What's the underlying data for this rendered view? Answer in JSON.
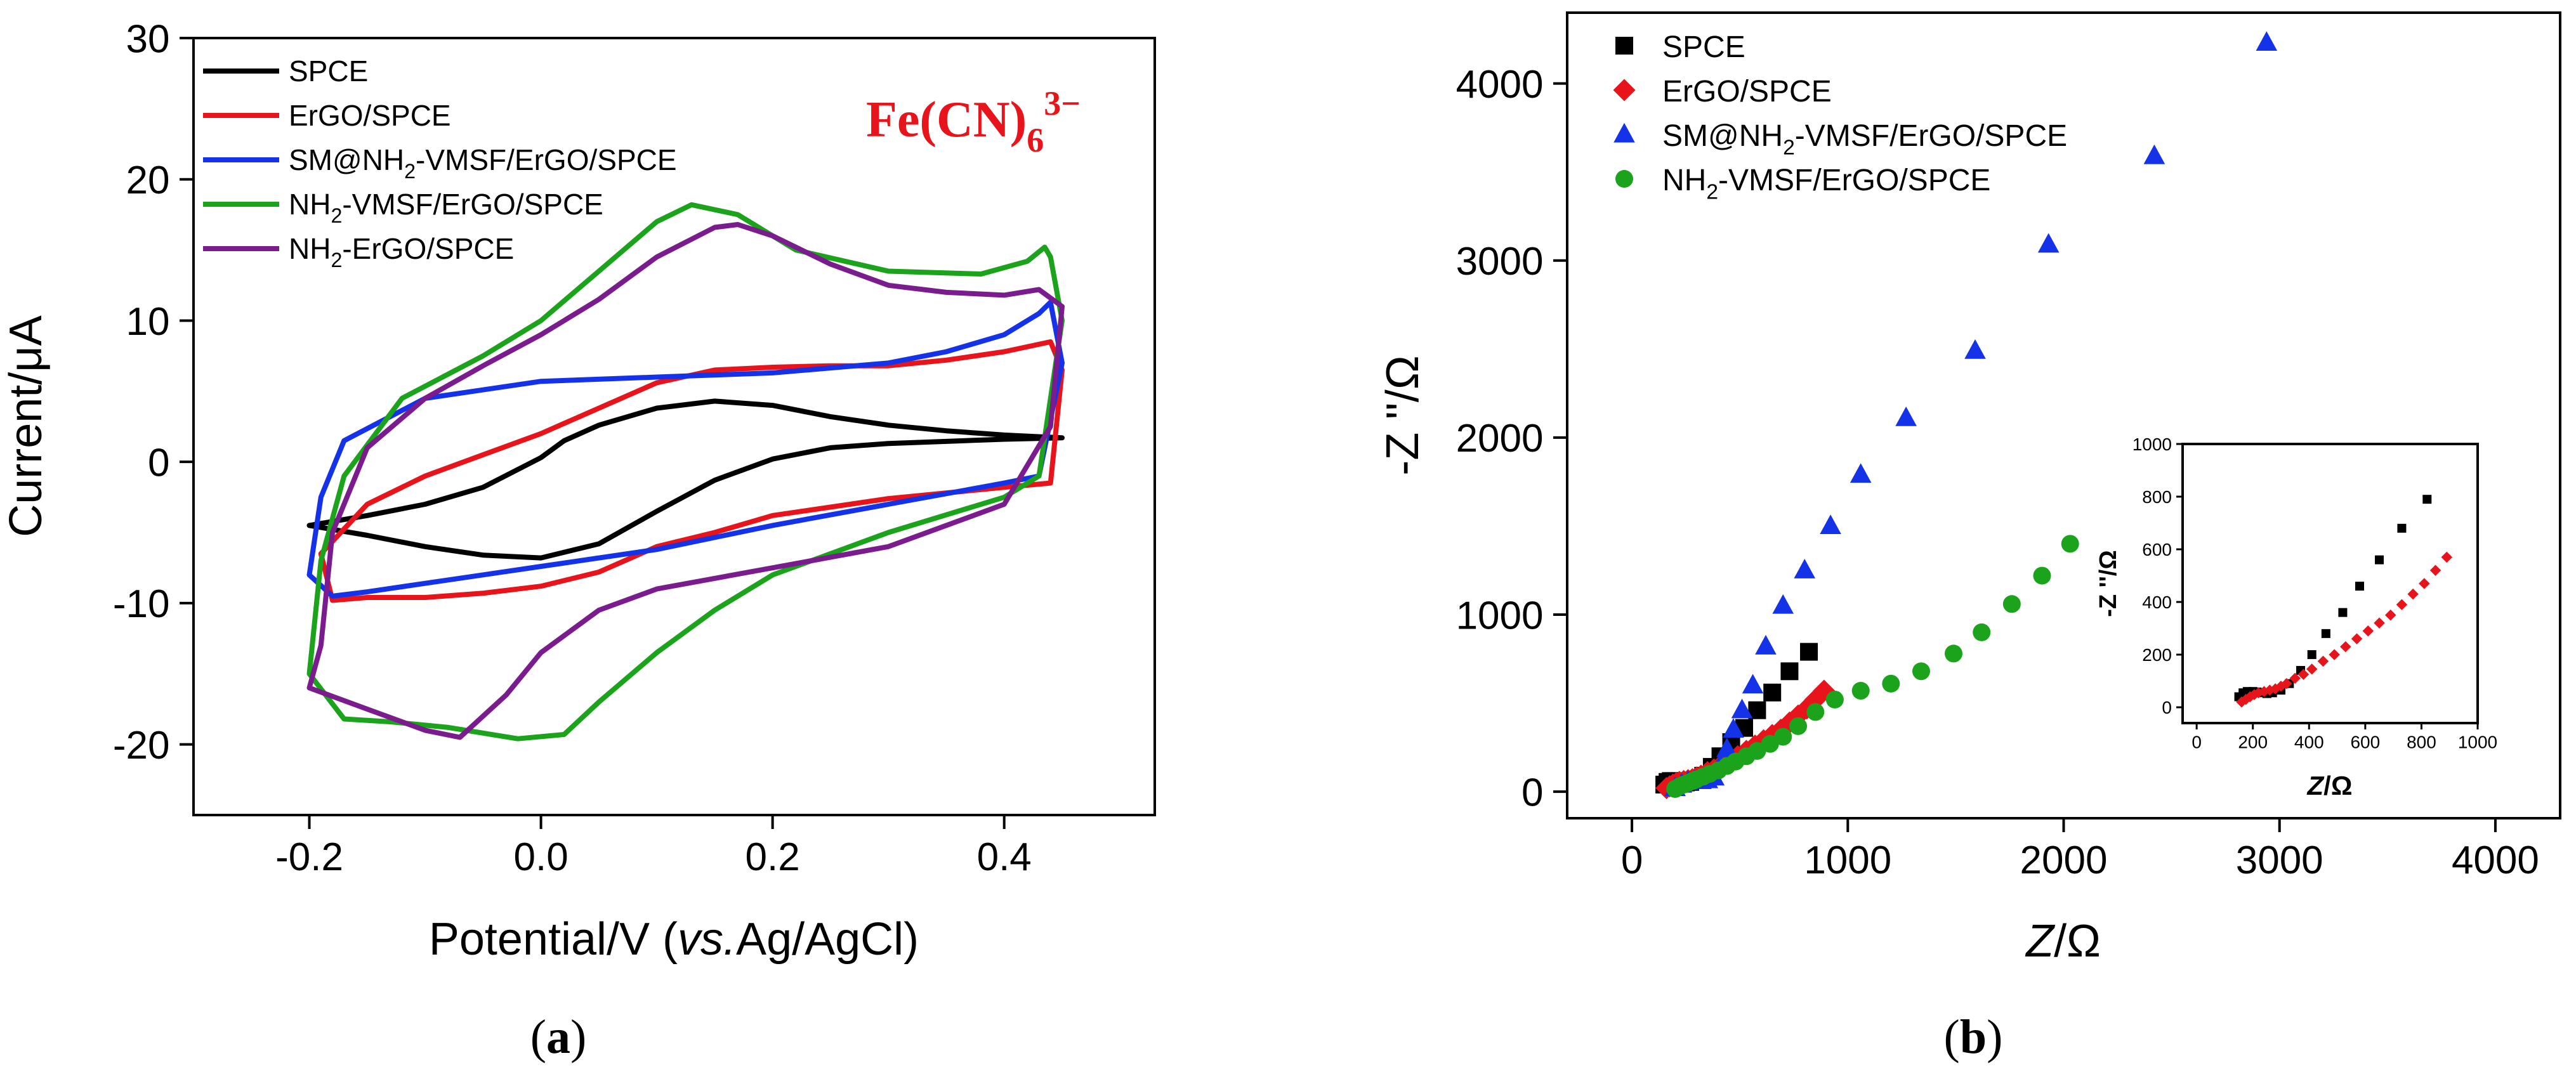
{
  "chart_data": [
    {
      "panel": "(a)",
      "panel_label": {
        "open": "(",
        "letter": "a",
        "close": ")"
      },
      "type": "line",
      "title": "",
      "annotation": {
        "main": "Fe(CN)",
        "sub": "6",
        "sup": "3−",
        "color": "#e8141b"
      },
      "xlabel": {
        "pre": "Potential/V (",
        "italic": "vs.",
        "post": "Ag/AgCl)"
      },
      "ylabel": "Current/μA",
      "xlim": [
        -0.3,
        0.53
      ],
      "ylim": [
        -25,
        30
      ],
      "xticks": [
        -0.2,
        0.0,
        0.2,
        0.4
      ],
      "xtick_labels": [
        "-0.2",
        "0.0",
        "0.2",
        "0.4"
      ],
      "yticks": [
        -20,
        -10,
        0,
        10,
        20,
        30
      ],
      "ytick_labels": [
        "-20",
        "-10",
        "0",
        "10",
        "20",
        "30"
      ],
      "legend_position": "top-left",
      "series": [
        {
          "name": "SPCE",
          "legend": {
            "pre": "SPCE",
            "sub": "",
            "post": ""
          },
          "color": "#000000",
          "x": [
            -0.2,
            -0.15,
            -0.1,
            -0.05,
            0.0,
            0.02,
            0.05,
            0.1,
            0.15,
            0.2,
            0.25,
            0.3,
            0.35,
            0.4,
            0.45,
            0.4,
            0.3,
            0.25,
            0.2,
            0.15,
            0.1,
            0.05,
            0.0,
            -0.05,
            -0.1,
            -0.15,
            -0.2
          ],
          "y": [
            -4.5,
            -3.8,
            -3.0,
            -1.8,
            0.3,
            1.5,
            2.6,
            3.8,
            4.3,
            4.0,
            3.2,
            2.6,
            2.2,
            1.9,
            1.7,
            1.6,
            1.3,
            1.0,
            0.2,
            -1.3,
            -3.5,
            -5.8,
            -6.8,
            -6.6,
            -6.0,
            -5.2,
            -4.5
          ]
        },
        {
          "name": "ErGO/SPCE",
          "legend": {
            "pre": "ErGO/SPCE",
            "sub": "",
            "post": ""
          },
          "color": "#e8141b",
          "x": [
            -0.19,
            -0.15,
            -0.1,
            -0.05,
            0.0,
            0.05,
            0.1,
            0.15,
            0.2,
            0.25,
            0.3,
            0.35,
            0.4,
            0.44,
            0.45,
            0.44,
            0.4,
            0.3,
            0.2,
            0.15,
            0.1,
            0.05,
            0.0,
            -0.05,
            -0.1,
            -0.15,
            -0.18,
            -0.19
          ],
          "y": [
            -6.5,
            -3.0,
            -1.0,
            0.5,
            2.0,
            3.8,
            5.6,
            6.5,
            6.7,
            6.8,
            6.8,
            7.2,
            7.8,
            8.5,
            6.5,
            -1.5,
            -1.8,
            -2.6,
            -3.8,
            -5.0,
            -6.0,
            -7.8,
            -8.8,
            -9.3,
            -9.6,
            -9.6,
            -9.8,
            -6.5
          ]
        },
        {
          "name": "SM@NH2-VMSF/ErGO/SPCE",
          "legend": {
            "pre": "SM@NH",
            "sub": "2",
            "post": "-VMSF/ErGO/SPCE"
          },
          "color": "#1432e8",
          "x": [
            -0.19,
            -0.17,
            -0.1,
            0.0,
            0.1,
            0.2,
            0.3,
            0.35,
            0.4,
            0.43,
            0.44,
            0.45,
            0.43,
            0.4,
            0.3,
            0.2,
            0.1,
            0.0,
            -0.1,
            -0.15,
            -0.18,
            -0.2,
            -0.19
          ],
          "y": [
            -2.5,
            1.5,
            4.5,
            5.7,
            6.0,
            6.3,
            7.0,
            7.8,
            9.0,
            10.5,
            11.3,
            7.0,
            -1.0,
            -1.5,
            -3.0,
            -4.5,
            -6.2,
            -7.4,
            -8.6,
            -9.2,
            -9.5,
            -8.0,
            -2.5
          ]
        },
        {
          "name": "NH2-VMSF/ErGO/SPCE",
          "legend": {
            "pre": "NH",
            "sub": "2",
            "post": "-VMSF/ErGO/SPCE"
          },
          "color": "#1ba31b",
          "x": [
            -0.19,
            -0.17,
            -0.12,
            -0.05,
            0.0,
            0.05,
            0.1,
            0.13,
            0.17,
            0.22,
            0.3,
            0.38,
            0.42,
            0.435,
            0.44,
            0.45,
            0.43,
            0.4,
            0.3,
            0.2,
            0.15,
            0.1,
            0.05,
            0.02,
            -0.02,
            -0.08,
            -0.13,
            -0.17,
            -0.2,
            -0.19
          ],
          "y": [
            -7.0,
            -1.0,
            4.5,
            7.5,
            10.0,
            13.5,
            17.0,
            18.2,
            17.5,
            15.0,
            13.5,
            13.3,
            14.2,
            15.2,
            14.5,
            10.0,
            -1.0,
            -2.5,
            -5.0,
            -8.0,
            -10.5,
            -13.5,
            -17.0,
            -19.3,
            -19.6,
            -18.8,
            -18.4,
            -18.2,
            -15.0,
            -7.0
          ]
        },
        {
          "name": "NH2-ErGO/SPCE",
          "legend": {
            "pre": "NH",
            "sub": "2",
            "post": "-ErGO/SPCE"
          },
          "color": "#7b1c8e",
          "x": [
            -0.19,
            -0.18,
            -0.15,
            -0.1,
            -0.05,
            0.0,
            0.05,
            0.1,
            0.15,
            0.17,
            0.2,
            0.25,
            0.3,
            0.35,
            0.4,
            0.43,
            0.45,
            0.44,
            0.4,
            0.3,
            0.2,
            0.1,
            0.05,
            0.0,
            -0.03,
            -0.07,
            -0.1,
            -0.15,
            -0.2,
            -0.19
          ],
          "y": [
            -13.0,
            -5.0,
            1.0,
            4.5,
            6.8,
            9.0,
            11.5,
            14.5,
            16.6,
            16.8,
            16.0,
            14.0,
            12.5,
            12.0,
            11.8,
            12.2,
            11.0,
            2.5,
            -3.0,
            -6.0,
            -7.5,
            -9.0,
            -10.5,
            -13.5,
            -16.5,
            -19.5,
            -19.0,
            -17.5,
            -16.0,
            -13.0
          ]
        }
      ]
    },
    {
      "panel": "(b)",
      "panel_label": {
        "open": "(",
        "letter": "b",
        "close": ")"
      },
      "type": "scatter",
      "title": "",
      "xlabel": {
        "italic": "Z",
        "post": "/Ω"
      },
      "ylabel": "-Z ''/Ω",
      "xlim": [
        -300,
        4300
      ],
      "ylim": [
        -150,
        4400
      ],
      "xticks": [
        0,
        1000,
        2000,
        3000,
        4000
      ],
      "xtick_labels": [
        "0",
        "1000",
        "2000",
        "3000",
        "4000"
      ],
      "yticks": [
        0,
        1000,
        2000,
        3000,
        4000
      ],
      "ytick_labels": [
        "0",
        "1000",
        "2000",
        "3000",
        "4000"
      ],
      "legend_position": "top-left",
      "series": [
        {
          "name": "SPCE",
          "legend": {
            "pre": "SPCE",
            "sub": "",
            "post": ""
          },
          "marker": "square",
          "color": "#000000",
          "x": [
            150,
            165,
            180,
            200,
            215,
            230,
            250,
            270,
            300,
            330,
            370,
            410,
            460,
            520,
            580,
            650,
            730,
            820
          ],
          "y": [
            40,
            55,
            60,
            60,
            58,
            55,
            52,
            55,
            65,
            90,
            140,
            200,
            280,
            360,
            460,
            560,
            680,
            790
          ]
        },
        {
          "name": "ErGO/SPCE",
          "legend": {
            "pre": "ErGO/SPCE",
            "sub": "",
            "post": ""
          },
          "marker": "diamond",
          "color": "#e8141b",
          "x": [
            160,
            175,
            190,
            205,
            220,
            240,
            260,
            280,
            300,
            320,
            350,
            380,
            410,
            450,
            490,
            530,
            570,
            610,
            650,
            690,
            730,
            770,
            810,
            850,
            890
          ],
          "y": [
            20,
            30,
            40,
            48,
            55,
            60,
            65,
            70,
            80,
            90,
            110,
            125,
            145,
            175,
            200,
            230,
            260,
            290,
            320,
            350,
            390,
            430,
            470,
            520,
            570
          ]
        },
        {
          "name": "SM@NH2-VMSF/ErGO/SPCE",
          "legend": {
            "pre": "SM@NH",
            "sub": "2",
            "post": "-VMSF/ErGO/SPCE"
          },
          "marker": "triangle",
          "color": "#1432e8",
          "x": [
            200,
            230,
            260,
            290,
            320,
            350,
            380,
            410,
            440,
            470,
            510,
            560,
            620,
            700,
            800,
            920,
            1060,
            1270,
            1590,
            1930,
            2420,
            2940
          ],
          "y": [
            20,
            40,
            55,
            60,
            60,
            65,
            80,
            150,
            240,
            350,
            460,
            600,
            820,
            1050,
            1250,
            1500,
            1790,
            2110,
            2490,
            3090,
            3590,
            4230
          ]
        },
        {
          "name": "NH2-VMSF/ErGO/SPCE",
          "legend": {
            "pre": "NH",
            "sub": "2",
            "post": "-VMSF/ErGO/SPCE"
          },
          "marker": "circle",
          "color": "#1ba31b",
          "x": [
            200,
            220,
            240,
            260,
            280,
            300,
            330,
            360,
            400,
            440,
            480,
            530,
            580,
            640,
            700,
            770,
            850,
            940,
            1060,
            1200,
            1340,
            1490,
            1620,
            1760,
            1900,
            2030
          ],
          "y": [
            15,
            30,
            40,
            50,
            60,
            70,
            85,
            100,
            120,
            145,
            170,
            200,
            230,
            270,
            310,
            370,
            450,
            520,
            570,
            610,
            680,
            780,
            900,
            1060,
            1220,
            1400
          ]
        }
      ],
      "inset": {
        "type": "scatter",
        "xlabel": {
          "italic": "Z",
          "post": "/Ω"
        },
        "ylabel": "-Z ''/Ω",
        "xlim": [
          -50,
          1000
        ],
        "ylim": [
          -60,
          1000
        ],
        "xticks": [
          0,
          200,
          400,
          600,
          800,
          1000
        ],
        "xtick_labels": [
          "0",
          "200",
          "400",
          "600",
          "800",
          "1000"
        ],
        "yticks": [
          0,
          200,
          400,
          600,
          800,
          1000
        ],
        "ytick_labels": [
          "0",
          "200",
          "400",
          "600",
          "800",
          "1000"
        ],
        "series": [
          {
            "name": "SPCE",
            "marker": "square",
            "color": "#000000",
            "x": [
              150,
              165,
              180,
              200,
              215,
              230,
              250,
              270,
              300,
              330,
              370,
              410,
              460,
              520,
              580,
              650,
              730,
              820
            ],
            "y": [
              40,
              55,
              60,
              60,
              58,
              55,
              52,
              55,
              65,
              90,
              140,
              200,
              280,
              360,
              460,
              560,
              680,
              790
            ]
          },
          {
            "name": "ErGO/SPCE",
            "marker": "diamond",
            "color": "#e8141b",
            "x": [
              160,
              175,
              190,
              205,
              220,
              240,
              260,
              280,
              300,
              320,
              350,
              380,
              410,
              450,
              490,
              530,
              570,
              610,
              650,
              690,
              730,
              770,
              810,
              850,
              890
            ],
            "y": [
              20,
              30,
              40,
              48,
              55,
              60,
              65,
              70,
              80,
              90,
              110,
              125,
              145,
              175,
              200,
              230,
              260,
              290,
              320,
              350,
              390,
              430,
              470,
              520,
              570
            ]
          }
        ]
      }
    }
  ]
}
